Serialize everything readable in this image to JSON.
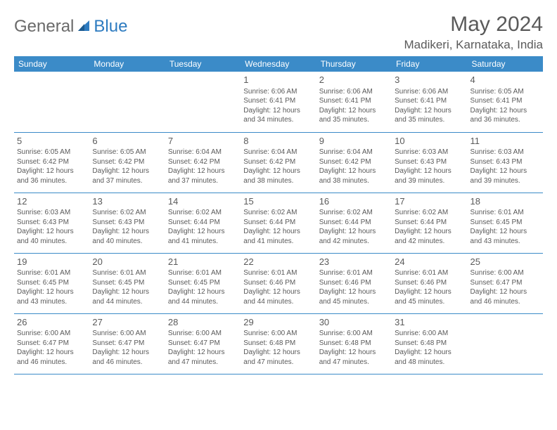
{
  "logo": {
    "general": "General",
    "blue": "Blue"
  },
  "month": "May 2024",
  "location": "Madikeri, Karnataka, India",
  "headers": [
    "Sunday",
    "Monday",
    "Tuesday",
    "Wednesday",
    "Thursday",
    "Friday",
    "Saturday"
  ],
  "colors": {
    "header_bg": "#3b8bc8",
    "header_fg": "#ffffff",
    "border": "#3b8bc8",
    "logo_blue": "#2d7bc0",
    "text": "#5a5a5a"
  },
  "weeks": [
    [
      null,
      null,
      null,
      {
        "n": "1",
        "sr": "6:06 AM",
        "ss": "6:41 PM",
        "dl": "12 hours and 34 minutes."
      },
      {
        "n": "2",
        "sr": "6:06 AM",
        "ss": "6:41 PM",
        "dl": "12 hours and 35 minutes."
      },
      {
        "n": "3",
        "sr": "6:06 AM",
        "ss": "6:41 PM",
        "dl": "12 hours and 35 minutes."
      },
      {
        "n": "4",
        "sr": "6:05 AM",
        "ss": "6:41 PM",
        "dl": "12 hours and 36 minutes."
      }
    ],
    [
      {
        "n": "5",
        "sr": "6:05 AM",
        "ss": "6:42 PM",
        "dl": "12 hours and 36 minutes."
      },
      {
        "n": "6",
        "sr": "6:05 AM",
        "ss": "6:42 PM",
        "dl": "12 hours and 37 minutes."
      },
      {
        "n": "7",
        "sr": "6:04 AM",
        "ss": "6:42 PM",
        "dl": "12 hours and 37 minutes."
      },
      {
        "n": "8",
        "sr": "6:04 AM",
        "ss": "6:42 PM",
        "dl": "12 hours and 38 minutes."
      },
      {
        "n": "9",
        "sr": "6:04 AM",
        "ss": "6:42 PM",
        "dl": "12 hours and 38 minutes."
      },
      {
        "n": "10",
        "sr": "6:03 AM",
        "ss": "6:43 PM",
        "dl": "12 hours and 39 minutes."
      },
      {
        "n": "11",
        "sr": "6:03 AM",
        "ss": "6:43 PM",
        "dl": "12 hours and 39 minutes."
      }
    ],
    [
      {
        "n": "12",
        "sr": "6:03 AM",
        "ss": "6:43 PM",
        "dl": "12 hours and 40 minutes."
      },
      {
        "n": "13",
        "sr": "6:02 AM",
        "ss": "6:43 PM",
        "dl": "12 hours and 40 minutes."
      },
      {
        "n": "14",
        "sr": "6:02 AM",
        "ss": "6:44 PM",
        "dl": "12 hours and 41 minutes."
      },
      {
        "n": "15",
        "sr": "6:02 AM",
        "ss": "6:44 PM",
        "dl": "12 hours and 41 minutes."
      },
      {
        "n": "16",
        "sr": "6:02 AM",
        "ss": "6:44 PM",
        "dl": "12 hours and 42 minutes."
      },
      {
        "n": "17",
        "sr": "6:02 AM",
        "ss": "6:44 PM",
        "dl": "12 hours and 42 minutes."
      },
      {
        "n": "18",
        "sr": "6:01 AM",
        "ss": "6:45 PM",
        "dl": "12 hours and 43 minutes."
      }
    ],
    [
      {
        "n": "19",
        "sr": "6:01 AM",
        "ss": "6:45 PM",
        "dl": "12 hours and 43 minutes."
      },
      {
        "n": "20",
        "sr": "6:01 AM",
        "ss": "6:45 PM",
        "dl": "12 hours and 44 minutes."
      },
      {
        "n": "21",
        "sr": "6:01 AM",
        "ss": "6:45 PM",
        "dl": "12 hours and 44 minutes."
      },
      {
        "n": "22",
        "sr": "6:01 AM",
        "ss": "6:46 PM",
        "dl": "12 hours and 44 minutes."
      },
      {
        "n": "23",
        "sr": "6:01 AM",
        "ss": "6:46 PM",
        "dl": "12 hours and 45 minutes."
      },
      {
        "n": "24",
        "sr": "6:01 AM",
        "ss": "6:46 PM",
        "dl": "12 hours and 45 minutes."
      },
      {
        "n": "25",
        "sr": "6:00 AM",
        "ss": "6:47 PM",
        "dl": "12 hours and 46 minutes."
      }
    ],
    [
      {
        "n": "26",
        "sr": "6:00 AM",
        "ss": "6:47 PM",
        "dl": "12 hours and 46 minutes."
      },
      {
        "n": "27",
        "sr": "6:00 AM",
        "ss": "6:47 PM",
        "dl": "12 hours and 46 minutes."
      },
      {
        "n": "28",
        "sr": "6:00 AM",
        "ss": "6:47 PM",
        "dl": "12 hours and 47 minutes."
      },
      {
        "n": "29",
        "sr": "6:00 AM",
        "ss": "6:48 PM",
        "dl": "12 hours and 47 minutes."
      },
      {
        "n": "30",
        "sr": "6:00 AM",
        "ss": "6:48 PM",
        "dl": "12 hours and 47 minutes."
      },
      {
        "n": "31",
        "sr": "6:00 AM",
        "ss": "6:48 PM",
        "dl": "12 hours and 48 minutes."
      },
      null
    ]
  ]
}
